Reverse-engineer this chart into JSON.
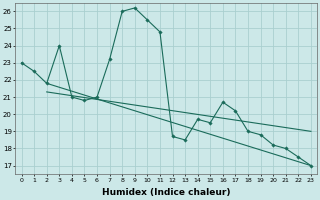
{
  "xlabel": "Humidex (Indice chaleur)",
  "ylabel": "",
  "bg_color": "#cce8e8",
  "grid_color": "#aacfcf",
  "line_color": "#1a6b5a",
  "xlim": [
    -0.5,
    23.5
  ],
  "ylim": [
    16.5,
    26.5
  ],
  "yticks": [
    17,
    18,
    19,
    20,
    21,
    22,
    23,
    24,
    25,
    26
  ],
  "xticks": [
    0,
    1,
    2,
    3,
    4,
    5,
    6,
    7,
    8,
    9,
    10,
    11,
    12,
    13,
    14,
    15,
    16,
    17,
    18,
    19,
    20,
    21,
    22,
    23
  ],
  "main_x": [
    0,
    1,
    2,
    3,
    4,
    5,
    6,
    7,
    8,
    9,
    10,
    11,
    12,
    13,
    14,
    15,
    16,
    17,
    18,
    19,
    20,
    21,
    22,
    23
  ],
  "main_y": [
    23,
    22.5,
    21.8,
    24.0,
    21.0,
    20.8,
    21.0,
    23.2,
    26.0,
    26.2,
    25.5,
    24.8,
    18.7,
    18.5,
    19.7,
    19.5,
    20.7,
    20.2,
    19.0,
    18.8,
    18.2,
    18.0,
    17.5,
    17.0
  ],
  "trend1_x": [
    2,
    23
  ],
  "trend1_y": [
    21.8,
    17.0
  ],
  "trend2_x": [
    2,
    23
  ],
  "trend2_y": [
    21.3,
    19.0
  ]
}
